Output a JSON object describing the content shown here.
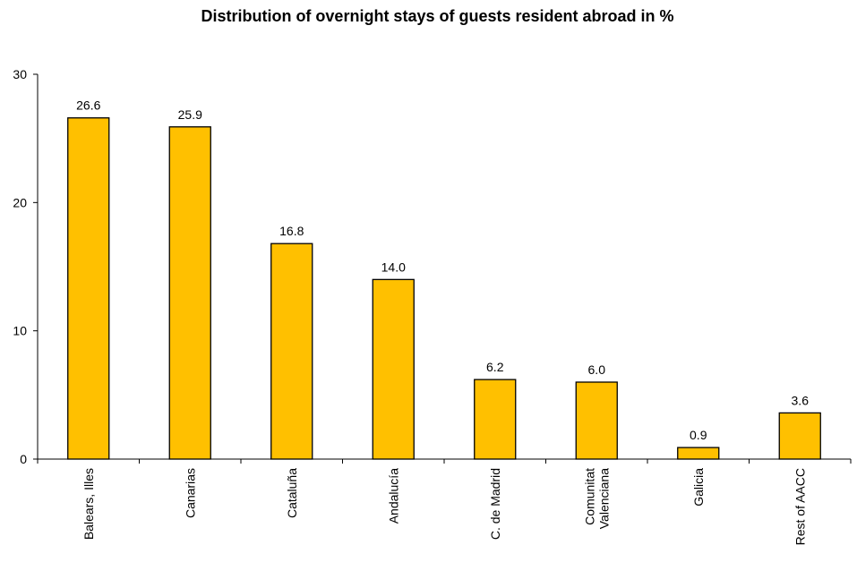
{
  "chart_data": {
    "type": "bar",
    "title": "Distribution of overnight stays of guests resident abroad in %",
    "categories": [
      [
        "Balears, Illes"
      ],
      [
        "Canarias"
      ],
      [
        "Cataluña"
      ],
      [
        "Andalucía"
      ],
      [
        "C. de Madrid"
      ],
      [
        "Comunitat",
        "Valenciana"
      ],
      [
        "Galicia"
      ],
      [
        "Rest of AACC"
      ]
    ],
    "values": [
      26.6,
      25.9,
      16.8,
      14.0,
      6.2,
      6.0,
      0.9,
      3.6
    ],
    "value_labels": [
      "26.6",
      "25.9",
      "16.8",
      "14.0",
      "6.2",
      "6.0",
      "0.9",
      "3.6"
    ],
    "ylim": [
      0,
      30
    ],
    "yticks": [
      0,
      10,
      20,
      30
    ],
    "grid": false,
    "bar_color": "#FFC000",
    "bar_stroke": "#000000"
  }
}
